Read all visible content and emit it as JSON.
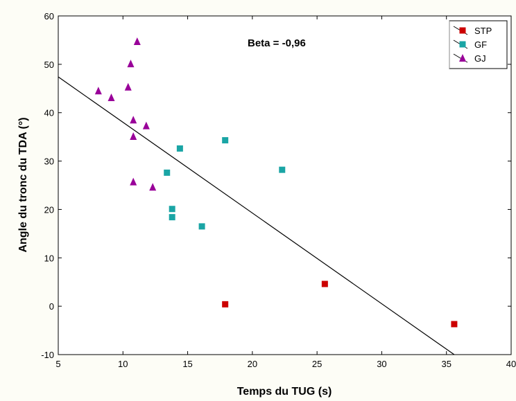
{
  "chart_data": {
    "type": "scatter",
    "xlabel": "Temps du TUG (s)",
    "ylabel": "Angle du tronc du TDA (°)",
    "xlim": [
      5,
      40
    ],
    "ylim": [
      -10,
      60
    ],
    "x_ticks": [
      5,
      10,
      15,
      20,
      25,
      30,
      35,
      40
    ],
    "y_ticks": [
      -10,
      0,
      10,
      20,
      30,
      40,
      50,
      60
    ],
    "grid": false,
    "legend_position": "top-right",
    "annotation": "Beta = -0,96",
    "series": [
      {
        "name": "STP",
        "marker": "square",
        "color": "#cc0000",
        "points": [
          {
            "x": 17.9,
            "y": 0.4
          },
          {
            "x": 25.6,
            "y": 4.6
          },
          {
            "x": 35.6,
            "y": -3.7
          }
        ]
      },
      {
        "name": "GF",
        "marker": "square",
        "color": "#1aa5a5",
        "points": [
          {
            "x": 14.4,
            "y": 32.6
          },
          {
            "x": 17.9,
            "y": 34.3
          },
          {
            "x": 22.3,
            "y": 28.2
          },
          {
            "x": 13.4,
            "y": 27.6
          },
          {
            "x": 13.8,
            "y": 20.1
          },
          {
            "x": 13.8,
            "y": 18.4
          },
          {
            "x": 16.1,
            "y": 16.5
          }
        ]
      },
      {
        "name": "GJ",
        "marker": "triangle",
        "color": "#990099",
        "points": [
          {
            "x": 11.1,
            "y": 54.7
          },
          {
            "x": 10.6,
            "y": 50.1
          },
          {
            "x": 8.1,
            "y": 44.5
          },
          {
            "x": 9.1,
            "y": 43.1
          },
          {
            "x": 10.4,
            "y": 45.3
          },
          {
            "x": 10.8,
            "y": 38.5
          },
          {
            "x": 11.8,
            "y": 37.3
          },
          {
            "x": 10.8,
            "y": 35.1
          },
          {
            "x": 10.8,
            "y": 25.7
          },
          {
            "x": 12.3,
            "y": 24.6
          }
        ]
      }
    ],
    "regression_line": {
      "color": "#000000",
      "x": [
        5,
        35.6
      ],
      "y": [
        47.4,
        -10
      ]
    }
  }
}
